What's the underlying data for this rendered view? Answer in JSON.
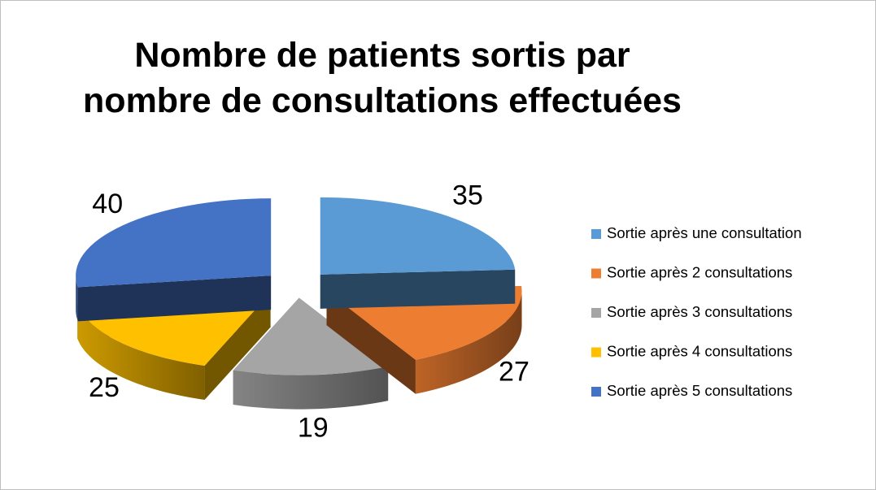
{
  "chart_data": {
    "type": "pie3d",
    "title": "Nombre de patients sortis par nombre de consultations effectuées",
    "categories": [
      "Sortie après une consultation",
      "Sortie après 2 consultations",
      "Sortie après 3 consultations",
      "Sortie après 4 consultations",
      "Sortie après 5 consultations"
    ],
    "values": [
      35,
      27,
      19,
      25,
      40
    ],
    "colors": [
      "#5b9bd5",
      "#ed7d31",
      "#a5a5a5",
      "#ffc000",
      "#4472c4"
    ],
    "legend": "right"
  }
}
